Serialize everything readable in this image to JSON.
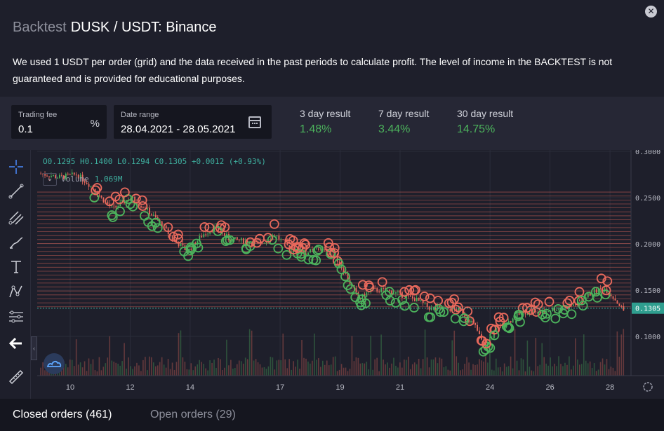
{
  "header": {
    "title_prefix": "Backtest",
    "title": "DUSK / USDT: Binance",
    "description": "We used 1 USDT per order (grid) and the data received in the past periods to calculate profit. The level of income in the BACKTEST is not guaranteed and is provided for educational purposes.",
    "close_label": "✕"
  },
  "controls": {
    "trading_fee_label": "Trading fee",
    "trading_fee_value": "0.1",
    "trading_fee_unit": "%",
    "date_range_label": "Date range",
    "date_range_value": "28.04.2021 - 28.05.2021",
    "results": [
      {
        "label": "3 day result",
        "value": "1.48%"
      },
      {
        "label": "7 day result",
        "value": "3.44%"
      },
      {
        "label": "30 day result",
        "value": "14.75%"
      }
    ]
  },
  "chart": {
    "ohlc_text": "O0.1295 H0.1400 L0.1294 C0.1305 +0.0012 (+0.93%)",
    "volume_label": "Volume",
    "volume_value": "1.069M",
    "collapse_glyph": "‹",
    "volume_toggle_glyph": "⌄",
    "colors": {
      "up": "#4cb25c",
      "down": "#e8695c",
      "grid_line": "#e8695c",
      "price_line": "#3fb0a0",
      "bg": "#1e1f2b"
    },
    "last_price": "0.1305"
  },
  "chart_data": {
    "type": "candlestick",
    "y_ticks": [
      "0.3000",
      "0.2500",
      "0.2000",
      "0.1500",
      "0.1000"
    ],
    "ylim": [
      0.05,
      0.3
    ],
    "x_ticks": [
      "10",
      "12",
      "14",
      "17",
      "19",
      "21",
      "24",
      "26",
      "28"
    ],
    "x_tick_days": [
      10,
      12,
      14,
      17,
      19,
      21,
      24,
      26,
      28
    ],
    "xlim": [
      8.9,
      28.7
    ],
    "price_path": [
      [
        9.0,
        0.276
      ],
      [
        9.6,
        0.272
      ],
      [
        10.2,
        0.275
      ],
      [
        10.7,
        0.262
      ],
      [
        11.0,
        0.25
      ],
      [
        11.4,
        0.238
      ],
      [
        12.0,
        0.25
      ],
      [
        12.5,
        0.238
      ],
      [
        13.0,
        0.222
      ],
      [
        13.4,
        0.205
      ],
      [
        13.9,
        0.192
      ],
      [
        14.4,
        0.21
      ],
      [
        14.8,
        0.218
      ],
      [
        15.3,
        0.205
      ],
      [
        15.8,
        0.203
      ],
      [
        16.3,
        0.2
      ],
      [
        16.8,
        0.21
      ],
      [
        17.3,
        0.195
      ],
      [
        17.8,
        0.19
      ],
      [
        18.3,
        0.195
      ],
      [
        18.8,
        0.188
      ],
      [
        19.2,
        0.165
      ],
      [
        19.6,
        0.14
      ],
      [
        20.0,
        0.15
      ],
      [
        20.5,
        0.15
      ],
      [
        21.0,
        0.145
      ],
      [
        21.5,
        0.14
      ],
      [
        22.0,
        0.13
      ],
      [
        22.5,
        0.13
      ],
      [
        23.0,
        0.128
      ],
      [
        23.5,
        0.11
      ],
      [
        23.8,
        0.088
      ],
      [
        24.2,
        0.108
      ],
      [
        24.7,
        0.118
      ],
      [
        25.1,
        0.127
      ],
      [
        25.6,
        0.125
      ],
      [
        26.1,
        0.13
      ],
      [
        26.6,
        0.132
      ],
      [
        27.0,
        0.138
      ],
      [
        27.4,
        0.148
      ],
      [
        27.8,
        0.152
      ],
      [
        28.1,
        0.142
      ],
      [
        28.5,
        0.125
      ]
    ],
    "grid_levels_range": [
      0.132,
      0.256
    ],
    "grid_level_count": 30
  },
  "footer": {
    "tabs": [
      {
        "label": "Closed orders (461)",
        "active": true
      },
      {
        "label": "Open orders (29)",
        "active": false
      }
    ]
  }
}
